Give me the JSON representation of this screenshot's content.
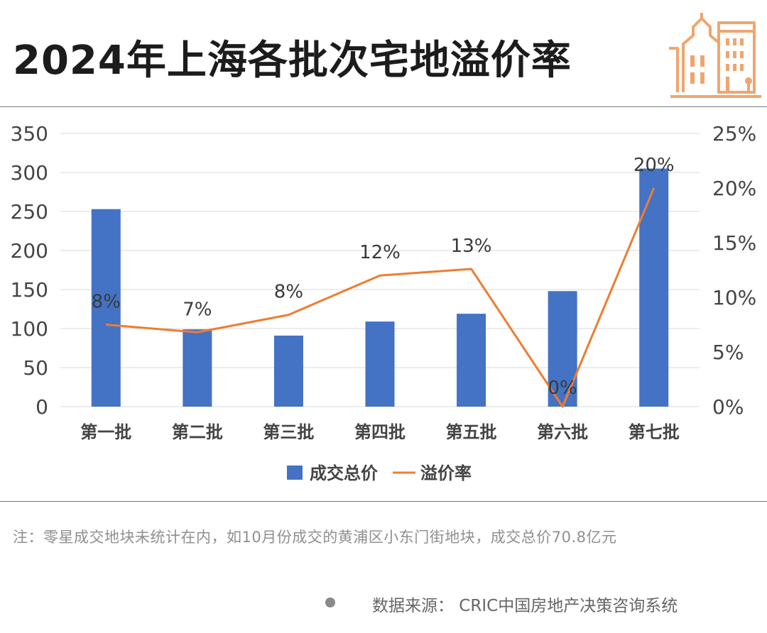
{
  "title": "2024年上海各批次宅地溢价率",
  "logo_icon": "buildings-icon",
  "colors": {
    "bar": "#4472C4",
    "line": "#ED7D31",
    "logo": "#F0A56E",
    "grid": "#D9D9D9"
  },
  "chart_data": {
    "type": "bar",
    "categories": [
      "第一批",
      "第二批",
      "第三批",
      "第四批",
      "第五批",
      "第六批",
      "第七批"
    ],
    "series": [
      {
        "name": "成交总价",
        "type": "bar",
        "axis": "left",
        "values": [
          253,
          99,
          91,
          109,
          119,
          148,
          305
        ]
      },
      {
        "name": "溢价率",
        "type": "line",
        "axis": "right",
        "values": [
          7.5,
          6.8,
          8.4,
          12.0,
          12.6,
          0,
          20.0
        ]
      }
    ],
    "data_labels": [
      "8%",
      "7%",
      "8%",
      "12%",
      "13%",
      "0%",
      "20%"
    ],
    "y_left": {
      "lim": [
        0,
        350
      ],
      "ticks": [
        "0",
        "50",
        "100",
        "150",
        "200",
        "250",
        "300",
        "350"
      ]
    },
    "y_right": {
      "lim": [
        0,
        25
      ],
      "ticks": [
        "0%",
        "5%",
        "10%",
        "15%",
        "20%",
        "25%"
      ]
    },
    "grid": true,
    "legend": "bottom"
  },
  "footer": {
    "note": "注：零星成交地块未统计在内，如10月份成交的黄浦区小东门街地块，成交总价70.8亿元",
    "source": "数据来源：  CRIC中国房地产决策咨询系统"
  }
}
